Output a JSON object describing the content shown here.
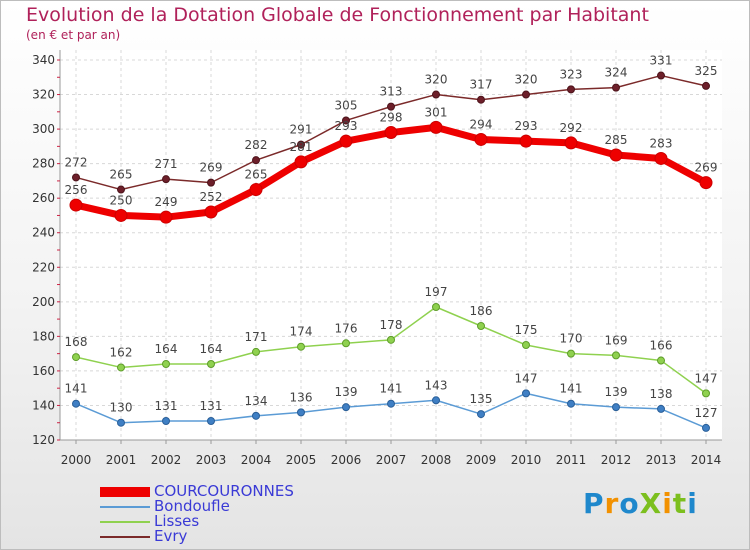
{
  "title": "Evolution de la Dotation Globale de Fonctionnement par Habitant",
  "subtitle": "(en € et par an)",
  "brand": {
    "text": "ProXiti",
    "colors": [
      "#1f88cc",
      "#f29100",
      "#1f88cc",
      "#7cbf1e",
      "#f29100",
      "#7cbf1e",
      "#1f88cc"
    ]
  },
  "chart_data": {
    "type": "line",
    "x": [
      "2000",
      "2001",
      "2002",
      "2003",
      "2004",
      "2005",
      "2006",
      "2007",
      "2008",
      "2009",
      "2010",
      "2011",
      "2012",
      "2013",
      "2014"
    ],
    "ylim": [
      120,
      340
    ],
    "yticks": [
      120,
      140,
      160,
      180,
      200,
      220,
      240,
      260,
      280,
      300,
      320,
      340
    ],
    "xlabel": "",
    "ylabel": "",
    "grid": true,
    "legend_position": "bottom-left",
    "series": [
      {
        "name": "COURCOURONNES",
        "color": "#ee0000",
        "values": [
          256,
          250,
          249,
          252,
          265,
          281,
          293,
          298,
          301,
          294,
          293,
          292,
          285,
          283,
          269
        ]
      },
      {
        "name": "Bondoufle",
        "color": "#5b9bd5",
        "values": [
          141,
          130,
          131,
          131,
          134,
          136,
          139,
          141,
          143,
          135,
          147,
          141,
          139,
          138,
          127
        ]
      },
      {
        "name": "Lisses",
        "color": "#8fd14f",
        "values": [
          168,
          162,
          164,
          164,
          171,
          174,
          176,
          178,
          197,
          186,
          175,
          170,
          169,
          166,
          147
        ]
      },
      {
        "name": "Evry",
        "color": "#7b2a2a",
        "values": [
          272,
          265,
          271,
          269,
          282,
          291,
          305,
          313,
          320,
          317,
          320,
          323,
          324,
          331,
          325
        ]
      }
    ]
  }
}
